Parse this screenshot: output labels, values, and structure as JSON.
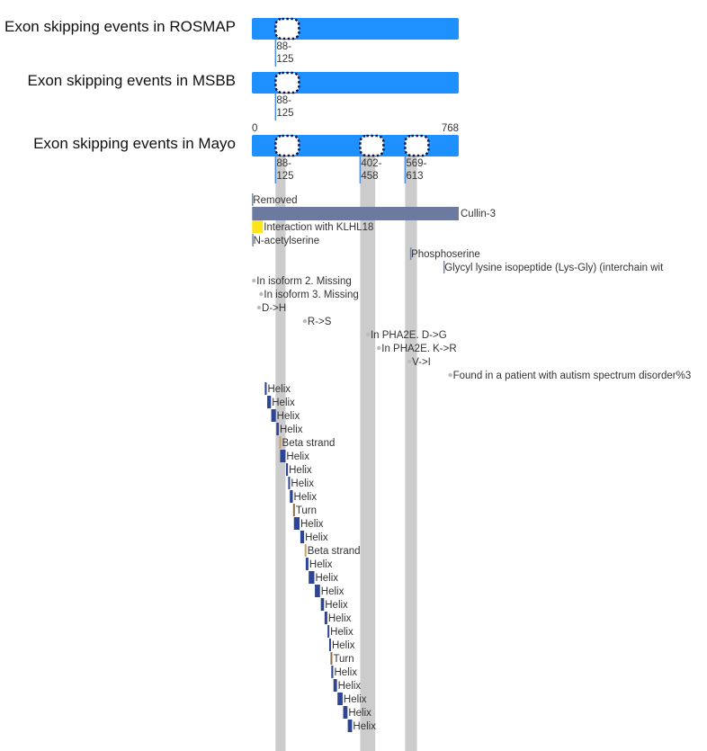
{
  "protein_length": 768,
  "colors": {
    "exon_bar": "#1e90ff",
    "skip_band": "#cccccc",
    "chain": "#6b7a9e",
    "helix": "#2e4494",
    "beta_strand": "#c8a06a",
    "turn": "#8b6b4a",
    "binding": "#ffe41a",
    "dot": "#bbbbbb",
    "line": "#4a90d9"
  },
  "datasets": [
    {
      "name": "Exon skipping events in ROSMAP",
      "events": [
        {
          "start": 88,
          "end": 125,
          "label_start": "88-",
          "label_end": "125"
        }
      ]
    },
    {
      "name": "Exon skipping events in MSBB",
      "events": [
        {
          "start": 88,
          "end": 125,
          "label_start": "88-",
          "label_end": "125"
        }
      ]
    },
    {
      "name": "Exon skipping events in Mayo",
      "axis_start": "0",
      "axis_end": "768",
      "events": [
        {
          "start": 88,
          "end": 125,
          "label_start": "88-",
          "label_end": "125"
        },
        {
          "start": 402,
          "end": 458,
          "label_start": "402-",
          "label_end": "458"
        },
        {
          "start": 569,
          "end": 613,
          "label_start": "569-",
          "label_end": "613"
        }
      ]
    }
  ],
  "features": [
    {
      "type": "site",
      "start": 1,
      "end": 1,
      "label": "Removed"
    },
    {
      "type": "chain",
      "start": 1,
      "end": 768,
      "label": "Cullin-3"
    },
    {
      "type": "binding",
      "start": 1,
      "end": 41,
      "label": "Interaction with KLHL18"
    },
    {
      "type": "site",
      "start": 2,
      "end": 2,
      "label": "N-acetylserine"
    },
    {
      "type": "site",
      "start": 588,
      "end": 588,
      "label": "Phosphoserine"
    },
    {
      "type": "site",
      "start": 712,
      "end": 712,
      "label": "Glycyl lysine isopeptide (Lys-Gly) (interchain wit"
    },
    {
      "type": "variant",
      "start": 1,
      "end": 1,
      "label": "In isoform 2. Missing"
    },
    {
      "type": "variant",
      "start": 28,
      "end": 28,
      "label": "In isoform 3. Missing"
    },
    {
      "type": "variant",
      "start": 20,
      "end": 20,
      "label": "D->H"
    },
    {
      "type": "variant",
      "start": 190,
      "end": 190,
      "label": "R->S"
    },
    {
      "type": "variant",
      "start": 424,
      "end": 424,
      "label": "In PHA2E. D->G"
    },
    {
      "type": "variant",
      "start": 465,
      "end": 465,
      "label": "In PHA2E. K->R"
    },
    {
      "type": "variant",
      "start": 578,
      "end": 578,
      "label": "V->I"
    },
    {
      "type": "variant",
      "start": 730,
      "end": 730,
      "label": "Found in a patient with autism spectrum disorder%3"
    },
    {
      "type": "helix",
      "start": 48,
      "end": 55,
      "label": "Helix"
    },
    {
      "type": "helix",
      "start": 57,
      "end": 71,
      "label": "Helix"
    },
    {
      "type": "helix",
      "start": 72,
      "end": 89,
      "label": "Helix"
    },
    {
      "type": "helix",
      "start": 91,
      "end": 100,
      "label": "Helix"
    },
    {
      "type": "beta_strand",
      "start": 102,
      "end": 104,
      "label": "Beta strand"
    },
    {
      "type": "helix",
      "start": 105,
      "end": 125,
      "label": "Helix"
    },
    {
      "type": "helix",
      "start": 127,
      "end": 134,
      "label": "Helix"
    },
    {
      "type": "helix",
      "start": 135,
      "end": 140,
      "label": "Helix"
    },
    {
      "type": "helix",
      "start": 141,
      "end": 152,
      "label": "Helix"
    },
    {
      "type": "turn",
      "start": 153,
      "end": 155,
      "label": "Turn"
    },
    {
      "type": "helix",
      "start": 156,
      "end": 177,
      "label": "Helix"
    },
    {
      "type": "helix",
      "start": 180,
      "end": 194,
      "label": "Helix"
    },
    {
      "type": "beta_strand",
      "start": 196,
      "end": 198,
      "label": "Beta strand"
    },
    {
      "type": "helix",
      "start": 200,
      "end": 210,
      "label": "Helix"
    },
    {
      "type": "helix",
      "start": 211,
      "end": 232,
      "label": "Helix"
    },
    {
      "type": "helix",
      "start": 234,
      "end": 253,
      "label": "Helix"
    },
    {
      "type": "helix",
      "start": 256,
      "end": 268,
      "label": "Helix"
    },
    {
      "type": "helix",
      "start": 270,
      "end": 280,
      "label": "Helix"
    },
    {
      "type": "helix",
      "start": 281,
      "end": 286,
      "label": "Helix"
    },
    {
      "type": "helix",
      "start": 287,
      "end": 291,
      "label": "Helix"
    },
    {
      "type": "turn",
      "start": 292,
      "end": 294,
      "label": "Turn"
    },
    {
      "type": "helix",
      "start": 295,
      "end": 302,
      "label": "Helix"
    },
    {
      "type": "helix",
      "start": 303,
      "end": 316,
      "label": "Helix"
    },
    {
      "type": "helix",
      "start": 318,
      "end": 337,
      "label": "Helix"
    },
    {
      "type": "helix",
      "start": 339,
      "end": 355,
      "label": "Helix"
    },
    {
      "type": "helix",
      "start": 356,
      "end": 372,
      "label": "Helix"
    }
  ]
}
